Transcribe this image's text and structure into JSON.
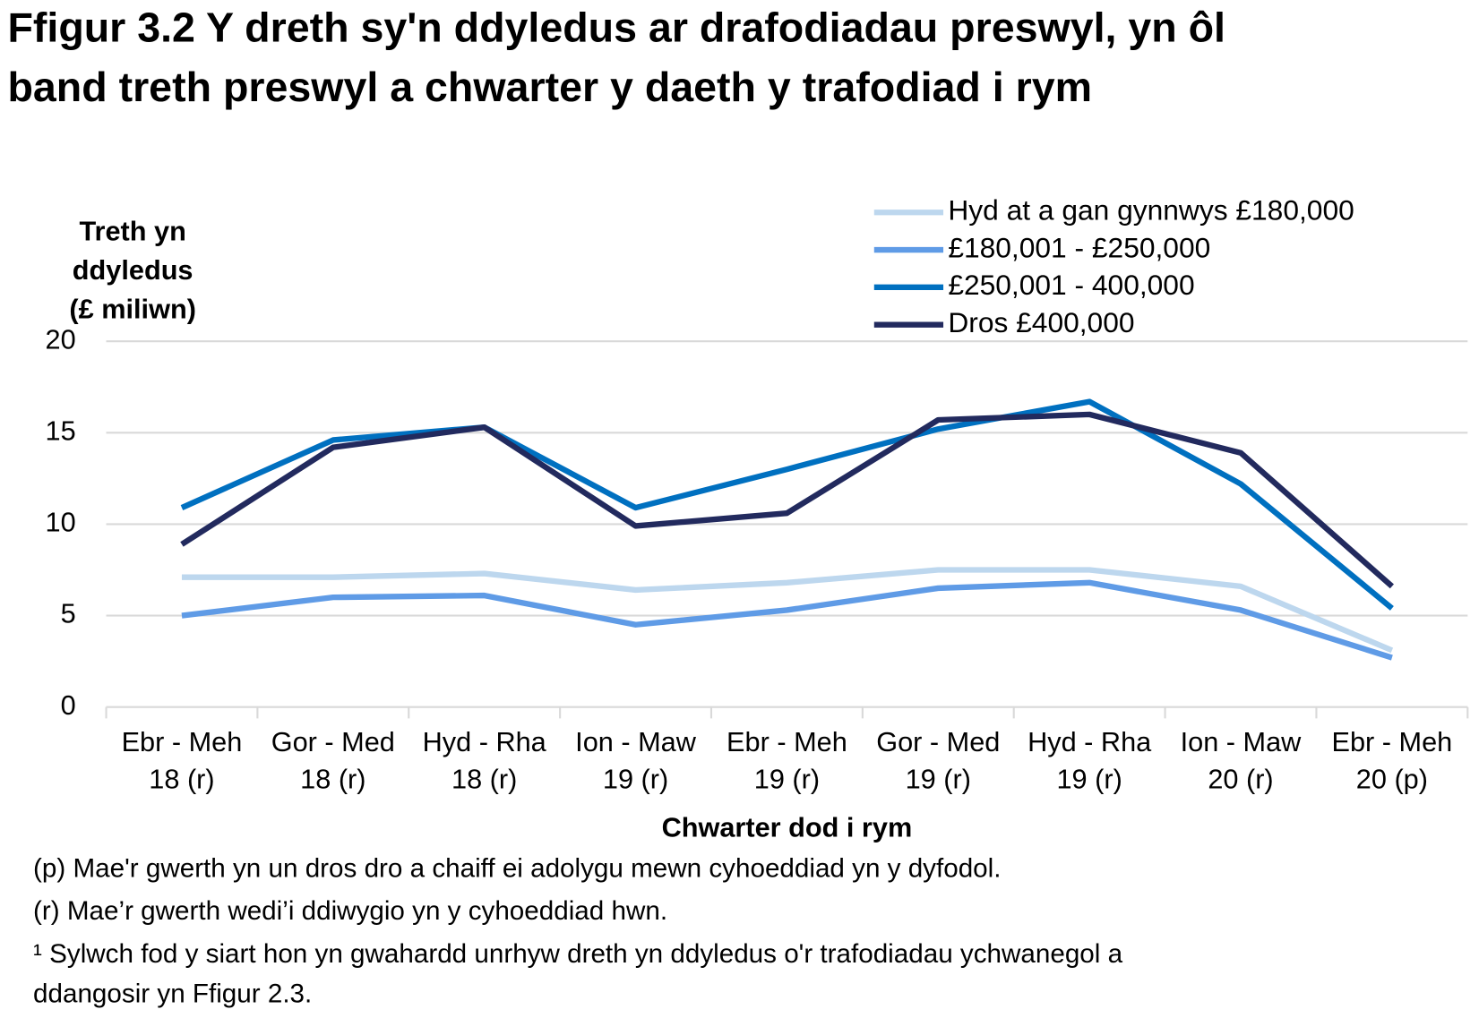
{
  "chart_data": {
    "type": "line",
    "title": [
      "Ffigur 3.2  Y dreth sy'n ddyledus ar drafodiadau preswyl, yn ôl",
      "band treth preswyl a chwarter y daeth y trafodiad i rym"
    ],
    "y_label": [
      "Treth yn",
      "ddyledus",
      "(£ miliwn)"
    ],
    "x_label": "Chwarter dod i rym",
    "categories": [
      [
        "Ebr - Meh",
        "18 (r)"
      ],
      [
        "Gor - Med",
        "18 (r)"
      ],
      [
        "Hyd - Rha",
        "18 (r)"
      ],
      [
        "Ion - Maw",
        "19 (r)"
      ],
      [
        "Ebr - Meh",
        "19 (r)"
      ],
      [
        "Gor - Med",
        "19 (r)"
      ],
      [
        "Hyd - Rha",
        "19 (r)"
      ],
      [
        "Ion - Maw",
        "20 (r)"
      ],
      [
        "Ebr - Meh",
        "20 (p)"
      ]
    ],
    "series": [
      {
        "name": "Hyd at a gan gynnwys £180,000",
        "color": "#bdd7ee",
        "values": [
          7.1,
          7.1,
          7.3,
          6.4,
          6.8,
          7.5,
          7.5,
          6.6,
          3.1
        ]
      },
      {
        "name": "£180,001 - £250,000",
        "color": "#5f9be6",
        "values": [
          5.0,
          6.0,
          6.1,
          4.5,
          5.3,
          6.5,
          6.8,
          5.3,
          2.7
        ]
      },
      {
        "name": "£250,001 - 400,000",
        "color": "#0070c0",
        "values": [
          10.9,
          14.6,
          15.3,
          10.9,
          13.0,
          15.2,
          16.7,
          12.2,
          5.4
        ]
      },
      {
        "name": "Dros £400,000",
        "color": "#222a5e",
        "values": [
          8.9,
          14.2,
          15.3,
          9.9,
          10.6,
          15.7,
          16.0,
          13.9,
          6.6
        ]
      }
    ],
    "ylim": [
      0,
      20
    ],
    "yticks": [
      0,
      5,
      10,
      15,
      20
    ],
    "grid": true,
    "legend": "top-right",
    "notes": [
      "(p) Mae'r gwerth yn un dros dro a chaiff ei adolygu mewn cyhoeddiad yn y dyfodol.",
      "(r) Mae’r gwerth wedi’i ddiwygio yn y cyhoeddiad hwn."
    ],
    "footnote": [
      "¹ Sylwch fod y siart hon yn gwahardd  unrhyw dreth yn ddyledus o'r trafodiadau  ychwanegol a",
      "ddangosir yn Ffigur 2.3."
    ]
  }
}
